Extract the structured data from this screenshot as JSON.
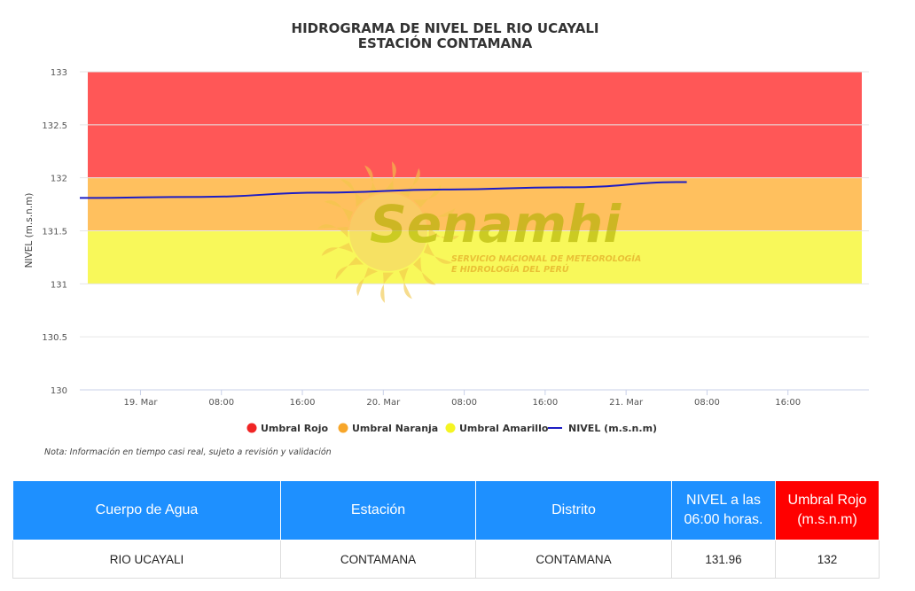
{
  "chart_data": {
    "type": "line",
    "title": "HIDROGRAMA DE NIVEL DEL RIO UCAYALI",
    "subtitle": "ESTACIÓN CONTAMANA",
    "ylabel": "NIVEL (m.s.n.m)",
    "ylim": [
      130,
      133
    ],
    "yticks": [
      "130",
      "130.5",
      "131",
      "131.5",
      "132",
      "132.5",
      "133"
    ],
    "xlim": [
      "2024-03-18 18:00",
      "2024-03-22 00:00"
    ],
    "xticks": [
      {
        "label": "19. Mar",
        "t": "2024-03-19 00:00"
      },
      {
        "label": "08:00",
        "t": "2024-03-19 08:00"
      },
      {
        "label": "16:00",
        "t": "2024-03-19 16:00"
      },
      {
        "label": "20. Mar",
        "t": "2024-03-20 00:00"
      },
      {
        "label": "08:00",
        "t": "2024-03-20 08:00"
      },
      {
        "label": "16:00",
        "t": "2024-03-20 16:00"
      },
      {
        "label": "21. Mar",
        "t": "2024-03-21 00:00"
      },
      {
        "label": "08:00",
        "t": "2024-03-21 08:00"
      },
      {
        "label": "16:00",
        "t": "2024-03-21 16:00"
      }
    ],
    "bands": [
      {
        "name": "Umbral Rojo",
        "from": 132,
        "to": 133,
        "color": "#ff5757"
      },
      {
        "name": "Umbral Naranja",
        "from": 131.5,
        "to": 132,
        "color": "#ffc05e"
      },
      {
        "name": "Umbral Amarillo",
        "from": 131,
        "to": 131.5,
        "color": "#f8f85a"
      }
    ],
    "series": [
      {
        "name": "NIVEL (m.s.n.m)",
        "color": "#1d1dc4",
        "points": [
          {
            "t": "2024-03-18 18:00",
            "y": 131.81
          },
          {
            "t": "2024-03-19 06:00",
            "y": 131.82
          },
          {
            "t": "2024-03-19 18:00",
            "y": 131.86
          },
          {
            "t": "2024-03-20 06:00",
            "y": 131.89
          },
          {
            "t": "2024-03-20 18:00",
            "y": 131.91
          },
          {
            "t": "2024-03-21 06:00",
            "y": 131.96
          }
        ]
      }
    ],
    "legend": [
      {
        "label": "Umbral Rojo",
        "color": "#f02525",
        "kind": "dot"
      },
      {
        "label": "Umbral Naranja",
        "color": "#f7a62a",
        "kind": "dot"
      },
      {
        "label": "Umbral Amarillo",
        "color": "#f5f523",
        "kind": "dot"
      },
      {
        "label": "NIVEL (m.s.n.m)",
        "color": "#1d1dc4",
        "kind": "line"
      }
    ],
    "legend_position": "bottom-center",
    "grid": true
  },
  "watermark": {
    "brand": "Senamhi",
    "line1": "SERVICIO NACIONAL DE METEOROLOGÍA",
    "line2": "E HIDROLOGÍA DEL PERÚ"
  },
  "note": "Nota: Información en tiempo casi real, sujeto a revisión y validación",
  "table": {
    "headers": [
      {
        "label": "Cuerpo de Agua",
        "bg": "#1e90ff"
      },
      {
        "label": "Estación",
        "bg": "#1e90ff"
      },
      {
        "label": "Distrito",
        "bg": "#1e90ff"
      },
      {
        "label": "NIVEL a las 06:00 horas.",
        "bg": "#1e90ff"
      },
      {
        "label": "Umbral Rojo (m.s.n.m)",
        "bg": "#ff0000"
      }
    ],
    "row": [
      "RIO UCAYALI",
      "CONTAMANA",
      "CONTAMANA",
      "131.96",
      "132"
    ]
  }
}
